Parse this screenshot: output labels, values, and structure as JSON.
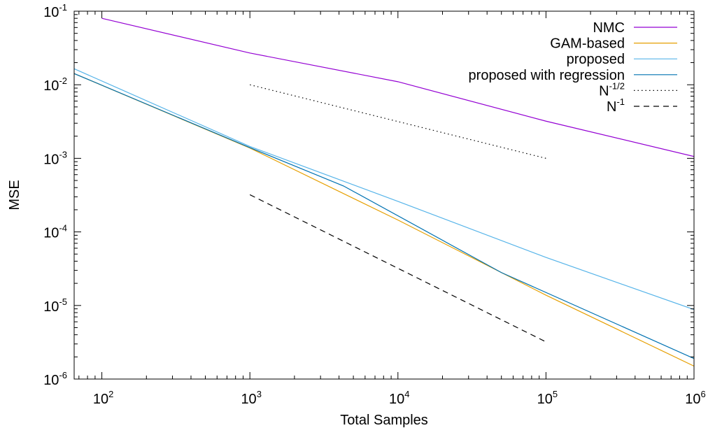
{
  "chart_data": {
    "type": "line",
    "title": "",
    "xlabel": "Total Samples",
    "ylabel": "MSE",
    "xscale": "log",
    "yscale": "log",
    "xlim": [
      65,
      1000000
    ],
    "ylim": [
      1e-06,
      0.1
    ],
    "grid": false,
    "legend": "top-right",
    "x_ticks": [
      {
        "value": 100,
        "base": "10",
        "exp": "2"
      },
      {
        "value": 1000,
        "base": "10",
        "exp": "3"
      },
      {
        "value": 10000,
        "base": "10",
        "exp": "4"
      },
      {
        "value": 100000,
        "base": "10",
        "exp": "5"
      },
      {
        "value": 1000000,
        "base": "10",
        "exp": "6"
      }
    ],
    "y_ticks": [
      {
        "value": 0.1,
        "base": "10",
        "exp": "-1"
      },
      {
        "value": 0.01,
        "base": "10",
        "exp": "-2"
      },
      {
        "value": 0.001,
        "base": "10",
        "exp": "-3"
      },
      {
        "value": 0.0001,
        "base": "10",
        "exp": "-4"
      },
      {
        "value": 1e-05,
        "base": "10",
        "exp": "-5"
      },
      {
        "value": 1e-06,
        "base": "10",
        "exp": "-6"
      }
    ],
    "series": [
      {
        "name": "NMC",
        "label_base": "NMC",
        "label_sup": "",
        "color": "#9400d3",
        "dash": "solid",
        "points": [
          [
            100,
            0.08
          ],
          [
            1000,
            0.027
          ],
          [
            10000,
            0.011
          ],
          [
            100000,
            0.0032
          ],
          [
            1000000,
            0.00106
          ]
        ]
      },
      {
        "name": "GAM-based",
        "label_base": "GAM-based",
        "label_sup": "",
        "color": "#e69f00",
        "dash": "solid",
        "points": [
          [
            65,
            0.0142
          ],
          [
            1000,
            0.00138
          ],
          [
            10000,
            0.000145
          ],
          [
            100000,
            1.38e-05
          ],
          [
            1000000,
            1.5e-06
          ]
        ]
      },
      {
        "name": "proposed",
        "label_base": "proposed",
        "label_sup": "",
        "color": "#56b4e9",
        "dash": "solid",
        "points": [
          [
            65,
            0.0165
          ],
          [
            1000,
            0.00145
          ],
          [
            10000,
            0.00026
          ],
          [
            100000,
            4.5e-05
          ],
          [
            1000000,
            8.8e-06
          ]
        ]
      },
      {
        "name": "proposed with regression",
        "label_base": "proposed with regression",
        "label_sup": "",
        "color": "#0072b2",
        "dash": "solid",
        "points": [
          [
            65,
            0.0142
          ],
          [
            1000,
            0.0014
          ],
          [
            4300,
            0.00042
          ],
          [
            50000,
            2.8e-05
          ],
          [
            1000000,
            1.9e-06
          ]
        ]
      },
      {
        "name": "N^-1/2",
        "label_base": "N",
        "label_sup": "-1/2",
        "color": "#000000",
        "dash": "dotted",
        "points": [
          [
            1000,
            0.01
          ],
          [
            100000,
            0.001
          ]
        ]
      },
      {
        "name": "N^-1",
        "label_base": "N",
        "label_sup": "-1",
        "color": "#000000",
        "dash": "dashed",
        "points": [
          [
            1000,
            0.00032
          ],
          [
            100000,
            3.2e-06
          ]
        ]
      }
    ]
  }
}
